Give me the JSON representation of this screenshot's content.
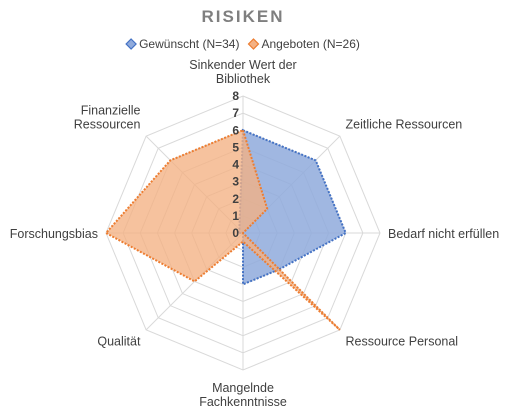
{
  "chart_data": {
    "type": "radar",
    "title": "RISIKEN",
    "categories": [
      [
        "Sinkender Wert der",
        "Bibliothek"
      ],
      [
        "Zeitliche Ressourcen"
      ],
      [
        "Bedarf nicht erfüllen"
      ],
      [
        "Ressource Personal"
      ],
      [
        "Mangelnde",
        "Fachkenntnisse"
      ],
      [
        "Qualität"
      ],
      [
        "Forschungsbias"
      ],
      [
        "Finanzielle",
        "Ressourcen"
      ]
    ],
    "rmax": 8,
    "ticks": [
      "0",
      "1",
      "2",
      "3",
      "4",
      "5",
      "6",
      "7",
      "8"
    ],
    "legend_position": "top",
    "series": [
      {
        "name": "Gewünscht (N=34)",
        "values": [
          6,
          6,
          6,
          3,
          3,
          0,
          0.3,
          0.3
        ],
        "color": "#4472c4",
        "fill": "#8faadc"
      },
      {
        "name": "Angeboten (N=26)",
        "values": [
          6,
          2,
          0,
          8,
          0.5,
          4,
          8,
          6
        ],
        "color": "#ed7d31",
        "fill": "#f4b183"
      }
    ]
  }
}
